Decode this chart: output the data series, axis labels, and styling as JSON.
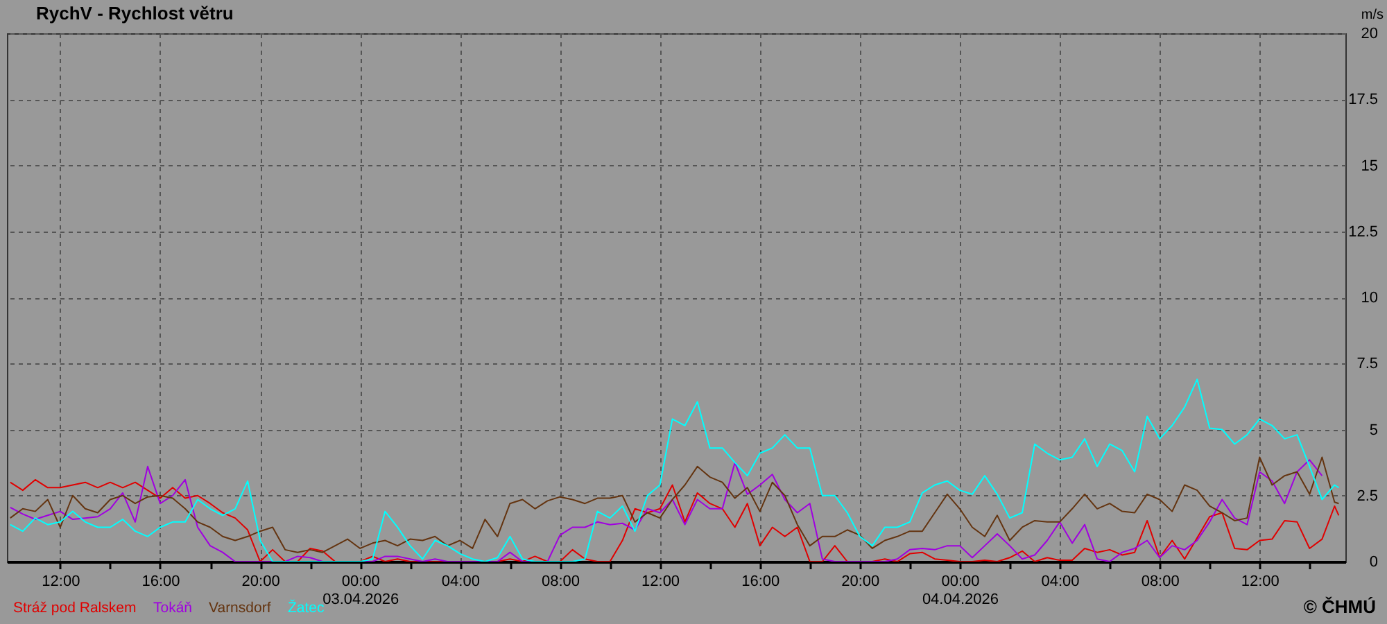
{
  "chart_data": {
    "type": "line",
    "title": "RychV - Rychlost větru",
    "ylabel": "m/s",
    "x": [
      "2026-04-02T10:00",
      "2026-04-02T10:30",
      "2026-04-02T11:00",
      "2026-04-02T11:30",
      "2026-04-02T12:00",
      "2026-04-02T12:30",
      "2026-04-02T13:00",
      "2026-04-02T13:30",
      "2026-04-02T14:00",
      "2026-04-02T14:30",
      "2026-04-02T15:00",
      "2026-04-02T15:30",
      "2026-04-02T16:00",
      "2026-04-02T16:30",
      "2026-04-02T17:00",
      "2026-04-02T17:30",
      "2026-04-02T18:00",
      "2026-04-02T18:30",
      "2026-04-02T19:00",
      "2026-04-02T19:30",
      "2026-04-02T20:00",
      "2026-04-02T20:30",
      "2026-04-02T21:00",
      "2026-04-02T21:30",
      "2026-04-02T22:00",
      "2026-04-02T22:30",
      "2026-04-02T23:00",
      "2026-04-02T23:30",
      "2026-04-03T00:00",
      "2026-04-03T00:30",
      "2026-04-03T01:00",
      "2026-04-03T01:30",
      "2026-04-03T02:00",
      "2026-04-03T02:30",
      "2026-04-03T03:00",
      "2026-04-03T03:30",
      "2026-04-03T04:00",
      "2026-04-03T04:30",
      "2026-04-03T05:00",
      "2026-04-03T05:30",
      "2026-04-03T06:00",
      "2026-04-03T06:30",
      "2026-04-03T07:00",
      "2026-04-03T07:30",
      "2026-04-03T08:00",
      "2026-04-03T08:30",
      "2026-04-03T09:00",
      "2026-04-03T09:30",
      "2026-04-03T10:00",
      "2026-04-03T10:30",
      "2026-04-03T11:00",
      "2026-04-03T11:30",
      "2026-04-03T12:00",
      "2026-04-03T12:30",
      "2026-04-03T13:00",
      "2026-04-03T13:30",
      "2026-04-03T14:00",
      "2026-04-03T14:30",
      "2026-04-03T15:00",
      "2026-04-03T15:30",
      "2026-04-03T16:00",
      "2026-04-03T16:30",
      "2026-04-03T17:00",
      "2026-04-03T17:30",
      "2026-04-03T18:00",
      "2026-04-03T18:30",
      "2026-04-03T19:00",
      "2026-04-03T19:30",
      "2026-04-03T20:00",
      "2026-04-03T20:30",
      "2026-04-03T21:00",
      "2026-04-03T21:30",
      "2026-04-03T22:00",
      "2026-04-03T22:30",
      "2026-04-03T23:00",
      "2026-04-03T23:30",
      "2026-04-04T00:00",
      "2026-04-04T00:30",
      "2026-04-04T01:00",
      "2026-04-04T01:30",
      "2026-04-04T02:00",
      "2026-04-04T02:30",
      "2026-04-04T03:00",
      "2026-04-04T03:30",
      "2026-04-04T04:00",
      "2026-04-04T04:30",
      "2026-04-04T05:00",
      "2026-04-04T05:30",
      "2026-04-04T06:00",
      "2026-04-04T06:30",
      "2026-04-04T07:00",
      "2026-04-04T07:30",
      "2026-04-04T08:00",
      "2026-04-04T08:30",
      "2026-04-04T09:00",
      "2026-04-04T09:30",
      "2026-04-04T10:00",
      "2026-04-04T10:30",
      "2026-04-04T11:00",
      "2026-04-04T11:30",
      "2026-04-04T12:00",
      "2026-04-04T12:30",
      "2026-04-04T13:00",
      "2026-04-04T13:30",
      "2026-04-04T14:00",
      "2026-04-04T14:30",
      "2026-04-04T15:00",
      "2026-04-04T15:10"
    ],
    "series": [
      {
        "name": "Stráž pod Ralskem",
        "color": "#e00000",
        "values": [
          3.0,
          2.7,
          3.1,
          2.8,
          2.8,
          2.9,
          3.0,
          2.8,
          3.0,
          2.8,
          3.0,
          2.7,
          2.4,
          2.8,
          2.4,
          2.5,
          2.2,
          1.85,
          1.65,
          1.2,
          0,
          0.45,
          0,
          0,
          0.5,
          0.4,
          0,
          0,
          0,
          0.2,
          0,
          0.1,
          0,
          0,
          0,
          0,
          0,
          0,
          0,
          0,
          0.1,
          0,
          0.2,
          0,
          0,
          0.45,
          0.1,
          0,
          0,
          0.8,
          2.0,
          1.85,
          2.0,
          2.9,
          1.5,
          2.6,
          2.2,
          2.0,
          1.3,
          2.2,
          0.6,
          1.3,
          0.95,
          1.3,
          0,
          0,
          0.6,
          0,
          0,
          0,
          0.1,
          0,
          0.3,
          0.35,
          0.1,
          0.05,
          0,
          0,
          0.05,
          0,
          0.15,
          0.4,
          0,
          0.15,
          0.05,
          0.05,
          0.5,
          0.35,
          0.45,
          0.25,
          0.35,
          1.55,
          0.15,
          0.8,
          0.1,
          0.9,
          1.7,
          1.85,
          0.5,
          0.45,
          0.8,
          0.85,
          1.55,
          1.5,
          0.5,
          0.85,
          2.1,
          1.75
        ]
      },
      {
        "name": "Tokáň",
        "color": "#a000e0",
        "values": [
          2.05,
          1.8,
          1.6,
          1.75,
          1.9,
          1.6,
          1.65,
          1.7,
          2.0,
          2.6,
          1.5,
          3.6,
          2.2,
          2.5,
          3.1,
          1.3,
          0.6,
          0.35,
          0,
          0,
          0,
          0,
          0,
          0.2,
          0.15,
          0,
          0,
          0,
          0,
          0,
          0.2,
          0.2,
          0.1,
          0,
          0.1,
          0,
          0,
          0,
          0,
          0,
          0.35,
          0,
          0,
          0,
          1.0,
          1.3,
          1.3,
          1.5,
          1.4,
          1.45,
          1.2,
          2.0,
          1.85,
          2.35,
          1.4,
          2.35,
          2.0,
          2.0,
          3.75,
          2.55,
          2.9,
          3.3,
          2.35,
          1.85,
          2.2,
          0.1,
          0,
          0,
          0,
          0,
          0,
          0.1,
          0.45,
          0.5,
          0.45,
          0.6,
          0.6,
          0.15,
          0.6,
          1.05,
          0.6,
          0.1,
          0.25,
          0.8,
          1.5,
          0.7,
          1.4,
          0.1,
          0,
          0.35,
          0.5,
          0.8,
          0.15,
          0.6,
          0.45,
          0.8,
          1.5,
          2.35,
          1.65,
          1.4,
          3.4,
          3.05,
          2.2,
          3.4,
          3.85,
          3.25,
          null,
          null
        ]
      },
      {
        "name": "Varnsdorf",
        "color": "#643410",
        "values": [
          1.65,
          2.0,
          1.9,
          2.35,
          1.3,
          2.5,
          2.0,
          1.85,
          2.35,
          2.5,
          2.2,
          2.45,
          2.5,
          2.4,
          2.0,
          1.5,
          1.3,
          0.95,
          0.8,
          0.95,
          1.15,
          1.3,
          0.45,
          0.35,
          0.45,
          0.35,
          0.6,
          0.85,
          0.5,
          0.7,
          0.8,
          0.6,
          0.85,
          0.8,
          0.95,
          0.6,
          0.8,
          0.5,
          1.6,
          0.95,
          2.2,
          2.35,
          2.0,
          2.3,
          2.45,
          2.35,
          2.2,
          2.4,
          2.4,
          2.5,
          1.5,
          1.85,
          1.65,
          2.35,
          2.9,
          3.6,
          3.2,
          3.0,
          2.4,
          2.8,
          1.9,
          3.0,
          2.5,
          1.4,
          0.6,
          0.95,
          0.95,
          1.2,
          1.0,
          0.5,
          0.8,
          0.95,
          1.15,
          1.15,
          1.85,
          2.55,
          2.0,
          1.3,
          0.95,
          1.75,
          0.8,
          1.3,
          1.55,
          1.5,
          1.5,
          2.0,
          2.55,
          2.0,
          2.2,
          1.9,
          1.85,
          2.55,
          2.35,
          1.9,
          2.9,
          2.7,
          2.1,
          1.85,
          1.55,
          1.65,
          3.95,
          2.9,
          3.25,
          3.4,
          2.55,
          3.95,
          2.25,
          2.2
        ]
      },
      {
        "name": "Žatec",
        "color": "#00ffff",
        "values": [
          1.4,
          1.15,
          1.65,
          1.4,
          1.5,
          1.9,
          1.5,
          1.3,
          1.3,
          1.6,
          1.15,
          0.95,
          1.3,
          1.5,
          1.5,
          2.35,
          2.0,
          1.75,
          2.0,
          3.05,
          0.8,
          0,
          0,
          0,
          0,
          0,
          0,
          0,
          0,
          0.1,
          1.9,
          1.3,
          0.6,
          0.1,
          0.8,
          0.6,
          0.3,
          0.1,
          0,
          0.15,
          0.95,
          0.1,
          0,
          0,
          0,
          0,
          0.1,
          1.9,
          1.65,
          2.1,
          1.15,
          2.5,
          2.9,
          5.4,
          5.15,
          6.05,
          4.3,
          4.3,
          3.75,
          3.25,
          4.1,
          4.3,
          4.8,
          4.3,
          4.3,
          2.5,
          2.5,
          1.85,
          0.95,
          0.6,
          1.3,
          1.3,
          1.5,
          2.6,
          2.9,
          3.05,
          2.7,
          2.55,
          3.25,
          2.55,
          1.65,
          1.85,
          4.45,
          4.1,
          3.85,
          3.95,
          4.65,
          3.6,
          4.45,
          4.2,
          3.4,
          5.5,
          4.65,
          5.15,
          5.85,
          6.9,
          5.05,
          5.0,
          4.45,
          4.8,
          5.4,
          5.15,
          4.65,
          4.8,
          3.6,
          2.35,
          2.9,
          2.8
        ]
      }
    ],
    "xlim": [
      "2026-04-02T09:52",
      "2026-04-04T15:26"
    ],
    "xticks": [
      {
        "value": "2026-04-02T12:00",
        "label": "12:00"
      },
      {
        "value": "2026-04-02T14:00",
        "label": null
      },
      {
        "value": "2026-04-02T16:00",
        "label": "16:00"
      },
      {
        "value": "2026-04-02T18:00",
        "label": null
      },
      {
        "value": "2026-04-02T20:00",
        "label": "20:00"
      },
      {
        "value": "2026-04-02T22:00",
        "label": null
      },
      {
        "value": "2026-04-03T00:00",
        "label": "00:00\n03.04.2026"
      },
      {
        "value": "2026-04-03T02:00",
        "label": null
      },
      {
        "value": "2026-04-03T04:00",
        "label": "04:00"
      },
      {
        "value": "2026-04-03T06:00",
        "label": null
      },
      {
        "value": "2026-04-03T08:00",
        "label": "08:00"
      },
      {
        "value": "2026-04-03T10:00",
        "label": null
      },
      {
        "value": "2026-04-03T12:00",
        "label": "12:00"
      },
      {
        "value": "2026-04-03T14:00",
        "label": null
      },
      {
        "value": "2026-04-03T16:00",
        "label": "16:00"
      },
      {
        "value": "2026-04-03T18:00",
        "label": null
      },
      {
        "value": "2026-04-03T20:00",
        "label": "20:00"
      },
      {
        "value": "2026-04-03T22:00",
        "label": null
      },
      {
        "value": "2026-04-04T00:00",
        "label": "00:00\n04.04.2026"
      },
      {
        "value": "2026-04-04T02:00",
        "label": null
      },
      {
        "value": "2026-04-04T04:00",
        "label": "04:00"
      },
      {
        "value": "2026-04-04T06:00",
        "label": null
      },
      {
        "value": "2026-04-04T08:00",
        "label": "08:00"
      },
      {
        "value": "2026-04-04T10:00",
        "label": null
      },
      {
        "value": "2026-04-04T12:00",
        "label": "12:00"
      },
      {
        "value": "2026-04-04T14:00",
        "label": null
      }
    ],
    "ylim": [
      0,
      20
    ],
    "yticks": [
      0,
      2.5,
      5,
      7.5,
      10,
      12.5,
      15,
      17.5,
      20
    ],
    "grid": true,
    "legend": "bottom left",
    "annotations": [
      "© ČHMÚ"
    ]
  }
}
